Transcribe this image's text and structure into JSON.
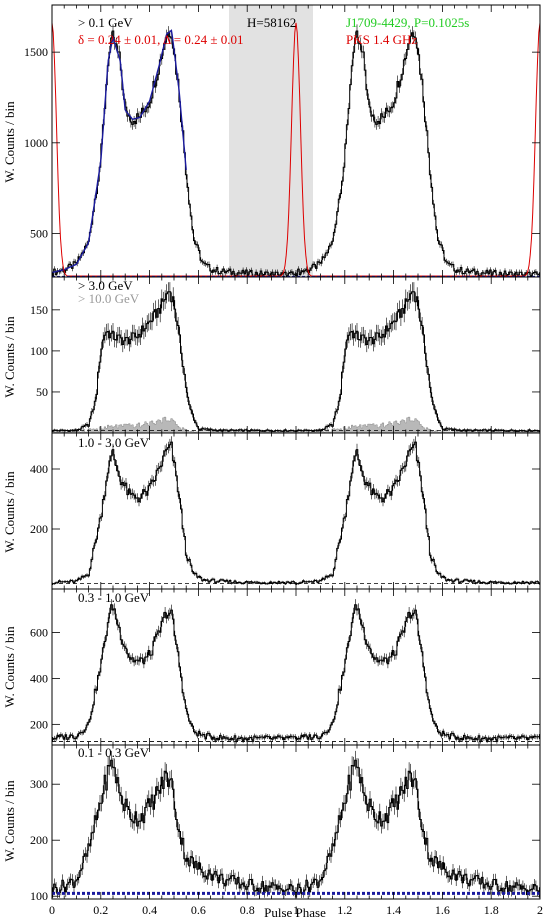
{
  "figure": {
    "xlabel": "Pulse Phase",
    "xlim": [
      0,
      2
    ],
    "xticks": [
      0,
      0.2,
      0.4,
      0.6,
      0.8,
      1,
      1.2,
      1.4,
      1.6,
      1.8,
      2
    ],
    "xtick_labels": [
      "0",
      "0.2",
      "0.4",
      "0.6",
      "0.8",
      "1",
      "1.2",
      "1.4",
      "1.6",
      "1.8",
      "2"
    ],
    "ylabel": "W. Counts / bin"
  },
  "chart_data": [
    {
      "type": "line",
      "panel": "top",
      "energy_label": "> 0.1 GeV",
      "annotations": {
        "delta_text": "δ = 0.24 ± 0.01, Δ = 0.24 ± 0.01",
        "htest": "H=58162",
        "pulsar": "J1709-4429, P=0.1025s",
        "radio": "PKS 1.4 GHz"
      },
      "ylim": [
        260,
        1760
      ],
      "yticks": [
        500,
        1000,
        1500
      ],
      "background_level": 262,
      "shaded_phase_range": [
        0.72,
        1.08
      ],
      "colors": {
        "data": "#000000",
        "model": "#1a1a9e",
        "radio": "#dd0000",
        "shade": "#e2e2e2",
        "background": "#1a1a9e",
        "pulsar_label": "#22cc22"
      },
      "series": [
        {
          "kind": "histogram",
          "x": [
            0.0,
            0.05,
            0.1,
            0.15,
            0.2,
            0.23,
            0.25,
            0.28,
            0.3,
            0.33,
            0.36,
            0.4,
            0.44,
            0.47,
            0.49,
            0.52,
            0.55,
            0.58,
            0.62,
            0.66,
            0.7,
            0.8,
            0.9,
            1.0
          ],
          "y": [
            285,
            300,
            330,
            450,
            900,
            1450,
            1580,
            1450,
            1180,
            1130,
            1140,
            1230,
            1430,
            1600,
            1620,
            1300,
            850,
            480,
            330,
            300,
            290,
            280,
            275,
            272
          ]
        },
        {
          "kind": "radio",
          "x": [
            0.88,
            0.93,
            0.96,
            0.98,
            1.0,
            1.02,
            1.04,
            1.07,
            1.12
          ],
          "y": [
            262,
            290,
            500,
            1200,
            1650,
            1200,
            500,
            290,
            262
          ]
        }
      ]
    },
    {
      "type": "line",
      "panel": "2",
      "energy_label": "> 3.0 GeV",
      "energy_label_2": "> 10.0 GeV",
      "ylim": [
        0,
        190
      ],
      "yticks": [
        50,
        100,
        150
      ],
      "background_level": 3,
      "series": [
        {
          "kind": "histogram",
          "x": [
            0.0,
            0.1,
            0.15,
            0.18,
            0.2,
            0.22,
            0.25,
            0.3,
            0.35,
            0.4,
            0.44,
            0.47,
            0.48,
            0.5,
            0.53,
            0.56,
            0.6,
            0.7,
            0.8,
            0.9,
            1.0
          ],
          "y": [
            3,
            3,
            10,
            40,
            100,
            125,
            118,
            112,
            118,
            135,
            150,
            168,
            175,
            160,
            100,
            35,
            5,
            3,
            3,
            3,
            3
          ]
        },
        {
          "kind": "high_energy",
          "x": [
            0.0,
            0.2,
            0.25,
            0.35,
            0.45,
            0.48,
            0.52,
            0.56,
            0.6,
            1.0
          ],
          "y": [
            0,
            5,
            8,
            9,
            15,
            18,
            8,
            2,
            0,
            0
          ]
        }
      ]
    },
    {
      "type": "line",
      "panel": "3",
      "energy_label": "1.0 - 3.0 GeV",
      "ylim": [
        0,
        520
      ],
      "yticks": [
        200,
        400
      ],
      "background_level": 18,
      "series": [
        {
          "kind": "histogram",
          "x": [
            0.0,
            0.1,
            0.15,
            0.2,
            0.23,
            0.25,
            0.28,
            0.32,
            0.36,
            0.4,
            0.44,
            0.47,
            0.49,
            0.52,
            0.55,
            0.58,
            0.62,
            0.7,
            0.8,
            0.9,
            1.0
          ],
          "y": [
            22,
            25,
            50,
            240,
            400,
            450,
            370,
            310,
            305,
            330,
            400,
            460,
            470,
            320,
            120,
            50,
            30,
            25,
            22,
            22,
            22
          ]
        }
      ]
    },
    {
      "type": "line",
      "panel": "4",
      "energy_label": "0.3 - 1.0 GeV",
      "ylim": [
        110,
        790
      ],
      "yticks": [
        200,
        400,
        600
      ],
      "background_level": 125,
      "series": [
        {
          "kind": "histogram",
          "x": [
            0.0,
            0.1,
            0.15,
            0.2,
            0.23,
            0.25,
            0.28,
            0.32,
            0.36,
            0.4,
            0.44,
            0.47,
            0.49,
            0.52,
            0.55,
            0.58,
            0.62,
            0.7,
            0.8,
            0.9,
            1.0
          ],
          "y": [
            140,
            150,
            200,
            450,
            650,
            720,
            600,
            490,
            470,
            500,
            600,
            690,
            680,
            480,
            260,
            170,
            150,
            140,
            138,
            138,
            138
          ]
        }
      ]
    },
    {
      "type": "line",
      "panel": "5",
      "energy_label": "0.1 - 0.3 GeV",
      "ylim": [
        95,
        370
      ],
      "yticks": [
        100,
        200,
        300
      ],
      "background_level": 105,
      "series": [
        {
          "kind": "histogram",
          "x": [
            0.0,
            0.05,
            0.1,
            0.15,
            0.2,
            0.23,
            0.25,
            0.28,
            0.32,
            0.36,
            0.4,
            0.44,
            0.47,
            0.49,
            0.52,
            0.55,
            0.6,
            0.65,
            0.7,
            0.8,
            0.9,
            1.0
          ],
          "y": [
            113,
            118,
            130,
            180,
            270,
            320,
            340,
            280,
            245,
            240,
            260,
            290,
            315,
            300,
            220,
            170,
            150,
            140,
            130,
            120,
            115,
            112
          ]
        }
      ]
    }
  ]
}
